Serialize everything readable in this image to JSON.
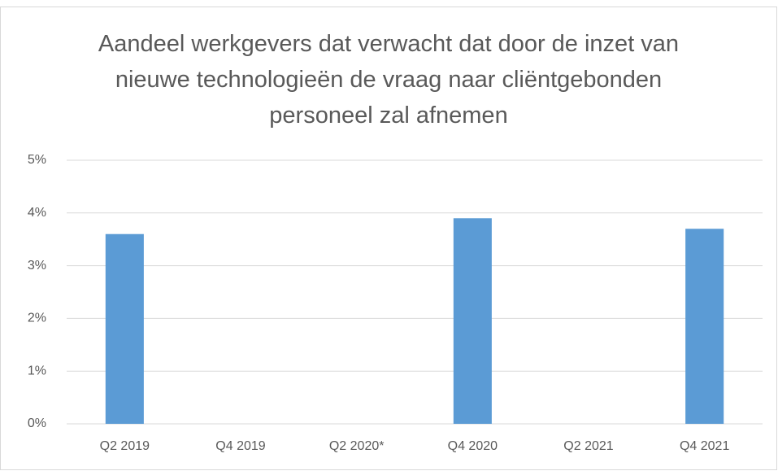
{
  "chart_data": {
    "type": "bar",
    "title": "Aandeel werkgevers dat verwacht dat door de inzet van nieuwe technologieën de vraag naar cliëntgebonden personeel zal afnemen",
    "categories": [
      "Q2 2019",
      "Q4 2019",
      "Q2 2020*",
      "Q4 2020",
      "Q2 2021",
      "Q4 2021"
    ],
    "values": [
      3.6,
      null,
      null,
      3.9,
      null,
      3.7
    ],
    "color": "#5b9bd5",
    "ylim": [
      0,
      5
    ],
    "yticks": [
      {
        "value": 0,
        "label": "0%"
      },
      {
        "value": 1,
        "label": "1%"
      },
      {
        "value": 2,
        "label": "2%"
      },
      {
        "value": 3,
        "label": "3%"
      },
      {
        "value": 4,
        "label": "4%"
      },
      {
        "value": 5,
        "label": "5%"
      }
    ],
    "grid": true
  }
}
